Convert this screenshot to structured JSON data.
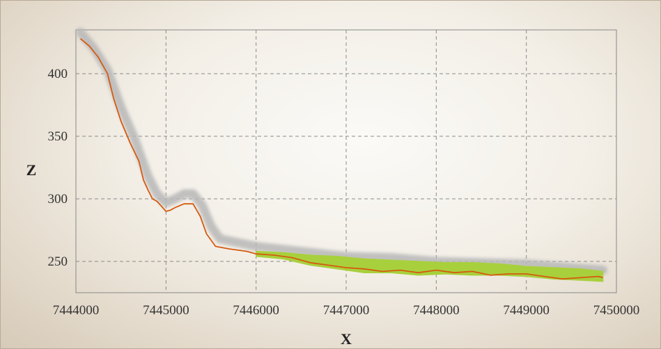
{
  "chart_data": {
    "type": "line",
    "title": "",
    "xlabel": "X",
    "ylabel": "Z",
    "xlim": [
      7444000,
      7450000
    ],
    "ylim": [
      225,
      435
    ],
    "x_ticks": [
      "7444000",
      "7445000",
      "7446000",
      "7447000",
      "7448000",
      "7449000",
      "7450000"
    ],
    "y_ticks": [
      "250",
      "300",
      "350",
      "400"
    ],
    "grid": true,
    "series": [
      {
        "color": "#b8b8b8",
        "style": "thick blurred band (upper profile)",
        "x": [
          7444050,
          7444200,
          7444350,
          7444500,
          7444650,
          7444800,
          7444900,
          7445000,
          7445100,
          7445200,
          7445300,
          7445400,
          7445500,
          7445600,
          7445800,
          7446000,
          7446500,
          7447000,
          7447500,
          7448000,
          7448500,
          7449000,
          7449500,
          7449850
        ],
        "y": [
          433,
          420,
          403,
          373,
          348,
          318,
          304,
          297,
          300,
          304,
          304,
          295,
          278,
          268,
          265,
          262,
          258,
          254,
          253,
          250,
          249,
          248,
          245,
          243
        ]
      },
      {
        "color": "#a8d03c",
        "style": "band",
        "x": [
          7446000,
          7446300,
          7446600,
          7446900,
          7447200,
          7447500,
          7447800,
          7448100,
          7448400,
          7448700,
          7449000,
          7449300,
          7449600,
          7449850
        ],
        "y_upper": [
          258,
          257,
          255,
          254,
          252,
          251,
          250,
          249,
          249,
          248,
          246,
          245,
          244,
          242
        ],
        "y_lower": [
          254,
          252,
          247,
          244,
          241,
          241,
          239,
          240,
          239,
          239,
          238,
          236,
          235,
          234
        ]
      },
      {
        "color": "#d65a10",
        "style": "line",
        "x": [
          7444050,
          7444150,
          7444250,
          7444350,
          7444420,
          7444500,
          7444600,
          7444700,
          7444750,
          7444800,
          7444850,
          7444900,
          7444950,
          7445000,
          7445050,
          7445100,
          7445200,
          7445300,
          7445380,
          7445450,
          7445550,
          7445700,
          7445900,
          7446000,
          7446200,
          7446400,
          7446600,
          7446800,
          7447000,
          7447200,
          7447400,
          7447600,
          7447800,
          7448000,
          7448200,
          7448400,
          7448600,
          7448800,
          7449000,
          7449200,
          7449400,
          7449600,
          7449800,
          7449850
        ],
        "y": [
          428,
          422,
          413,
          400,
          380,
          362,
          345,
          330,
          315,
          307,
          300,
          298,
          294,
          290,
          291,
          293,
          296,
          296,
          286,
          272,
          262,
          260,
          258,
          256,
          255,
          253,
          249,
          247,
          245,
          244,
          242,
          243,
          241,
          243,
          241,
          242,
          239,
          240,
          240,
          238,
          236,
          237,
          238,
          237
        ]
      }
    ]
  }
}
